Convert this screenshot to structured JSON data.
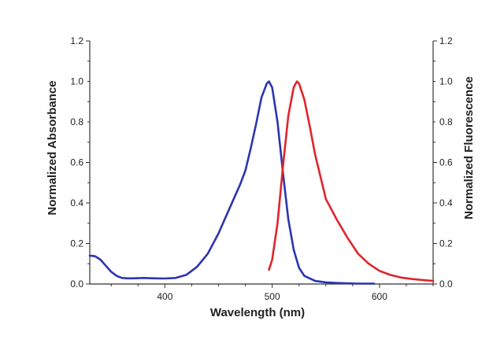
{
  "chart_data": {
    "type": "line",
    "xlabel": "Wavelength (nm)",
    "ylabel_left": "Normalized Absorbance",
    "ylabel_right": "Normalized Fluorescence",
    "xlim": [
      330,
      650
    ],
    "ylim_left": [
      0,
      1.2
    ],
    "ylim_right": [
      0,
      1.2
    ],
    "x_ticks": [
      "400",
      "500",
      "600"
    ],
    "x_tick_values": [
      400,
      500,
      600
    ],
    "y_ticks": [
      "0.0",
      "0.2",
      "0.4",
      "0.6",
      "0.8",
      "1.0",
      "1.2"
    ],
    "y_tick_values": [
      0,
      0.2,
      0.4,
      0.6,
      0.8,
      1.0,
      1.2
    ],
    "grid": false,
    "series": [
      {
        "axis": "left",
        "color": "#2b35b0",
        "x": [
          330,
          335,
          340,
          345,
          350,
          355,
          360,
          365,
          370,
          380,
          390,
          400,
          410,
          420,
          430,
          440,
          450,
          460,
          465,
          470,
          475,
          480,
          485,
          490,
          495,
          497,
          500,
          505,
          510,
          515,
          520,
          525,
          530,
          540,
          550,
          560,
          570,
          580,
          590,
          595
        ],
        "values": [
          0.14,
          0.137,
          0.12,
          0.09,
          0.06,
          0.04,
          0.03,
          0.028,
          0.028,
          0.03,
          0.028,
          0.027,
          0.03,
          0.045,
          0.085,
          0.15,
          0.25,
          0.37,
          0.43,
          0.49,
          0.56,
          0.67,
          0.79,
          0.92,
          0.99,
          1.0,
          0.97,
          0.8,
          0.55,
          0.32,
          0.17,
          0.08,
          0.04,
          0.015,
          0.008,
          0.005,
          0.003,
          0.002,
          0.002,
          0.002
        ]
      },
      {
        "axis": "right",
        "color": "#e0242c",
        "x": [
          497,
          500,
          505,
          510,
          515,
          520,
          523,
          525,
          530,
          535,
          540,
          550,
          560,
          570,
          580,
          590,
          600,
          610,
          620,
          630,
          640,
          650
        ],
        "values": [
          0.07,
          0.12,
          0.3,
          0.58,
          0.83,
          0.97,
          1.0,
          0.99,
          0.91,
          0.78,
          0.64,
          0.42,
          0.32,
          0.23,
          0.15,
          0.1,
          0.065,
          0.045,
          0.032,
          0.025,
          0.02,
          0.015
        ]
      }
    ]
  }
}
